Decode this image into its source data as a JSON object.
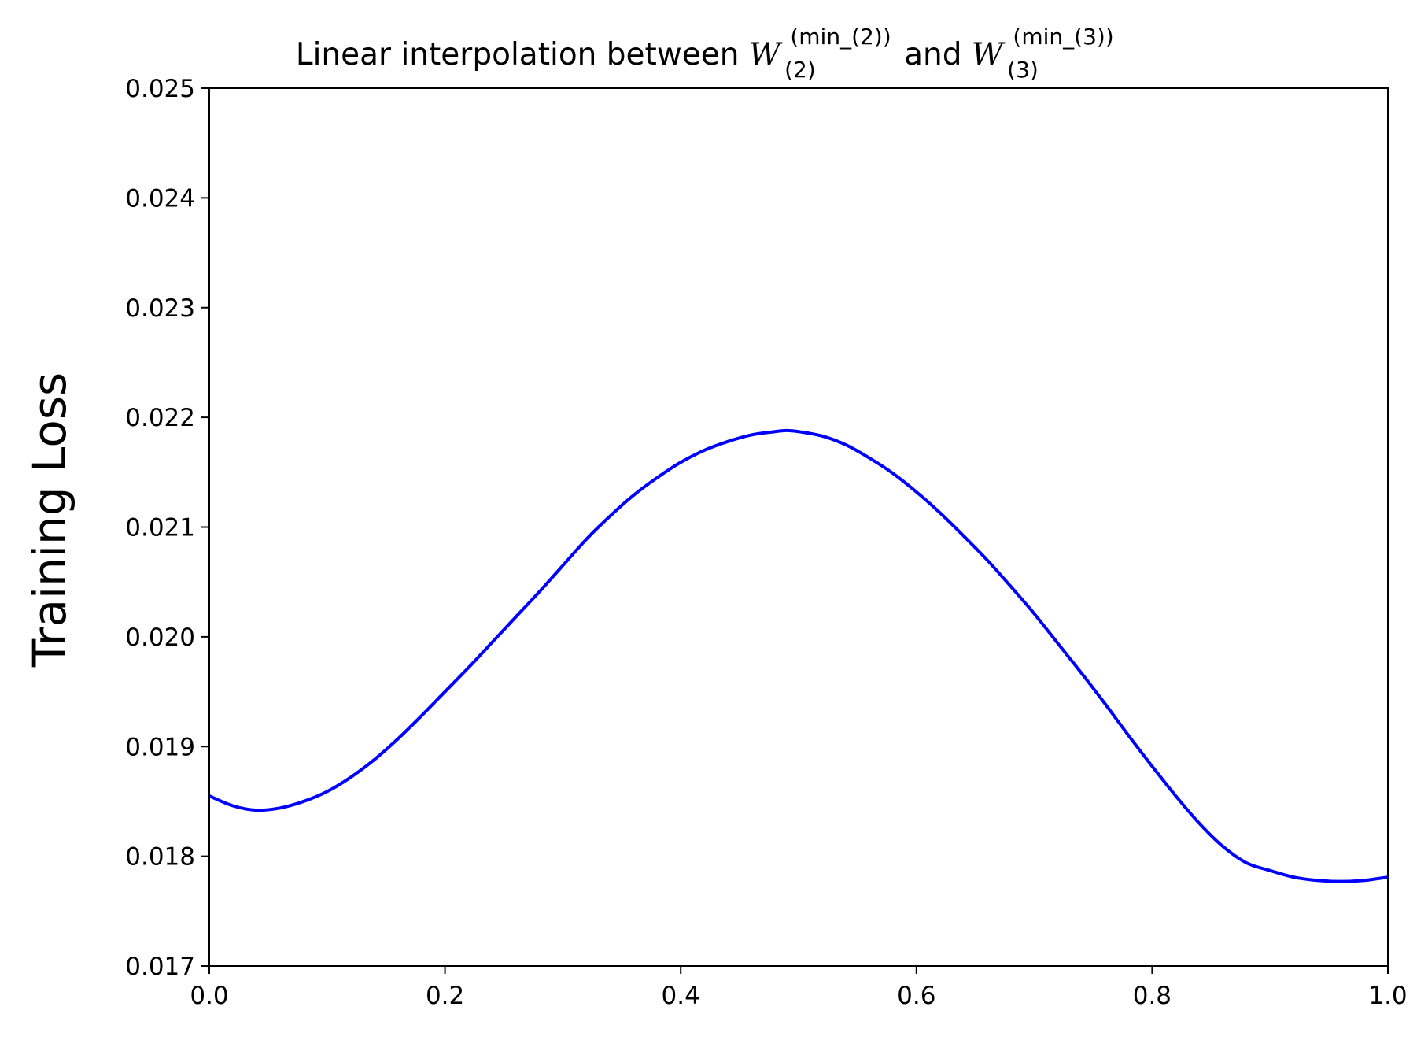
{
  "chart_data": {
    "type": "line",
    "title": {
      "prefix": "Linear interpolation between ",
      "w1_symbol": "W",
      "w1_sup": "(min_(2))",
      "w1_sub": "(2)",
      "connector": " and ",
      "w2_symbol": "W",
      "w2_sup": "(min_(3))",
      "w2_sub": "(3)"
    },
    "xlabel": "",
    "ylabel": "Training Loss",
    "xlim": [
      0.0,
      1.0
    ],
    "ylim": [
      0.017,
      0.025
    ],
    "xticks": [
      "0.0",
      "0.2",
      "0.4",
      "0.6",
      "0.8",
      "1.0"
    ],
    "yticks": [
      "0.017",
      "0.018",
      "0.019",
      "0.020",
      "0.021",
      "0.022",
      "0.023",
      "0.024",
      "0.025"
    ],
    "grid": false,
    "series": [
      {
        "color": "#0000ff",
        "x": [
          0.0,
          0.02,
          0.04,
          0.06,
          0.08,
          0.1,
          0.12,
          0.14,
          0.16,
          0.18,
          0.2,
          0.22,
          0.24,
          0.26,
          0.28,
          0.3,
          0.32,
          0.34,
          0.36,
          0.38,
          0.4,
          0.42,
          0.44,
          0.46,
          0.48,
          0.49,
          0.5,
          0.52,
          0.54,
          0.56,
          0.58,
          0.6,
          0.62,
          0.64,
          0.66,
          0.68,
          0.7,
          0.72,
          0.74,
          0.76,
          0.78,
          0.8,
          0.82,
          0.84,
          0.86,
          0.88,
          0.9,
          0.92,
          0.94,
          0.96,
          0.98,
          1.0
        ],
        "y": [
          0.01855,
          0.01846,
          0.01842,
          0.01844,
          0.0185,
          0.01859,
          0.01872,
          0.01888,
          0.01907,
          0.01928,
          0.0195,
          0.01972,
          0.01995,
          0.02018,
          0.02041,
          0.02065,
          0.02089,
          0.0211,
          0.02129,
          0.02145,
          0.02159,
          0.0217,
          0.02178,
          0.02184,
          0.02187,
          0.02188,
          0.02187,
          0.02183,
          0.02175,
          0.02163,
          0.02149,
          0.02132,
          0.02113,
          0.02092,
          0.0207,
          0.02046,
          0.02021,
          0.01994,
          0.01967,
          0.01939,
          0.0191,
          0.01882,
          0.01855,
          0.0183,
          0.01809,
          0.01794,
          0.01787,
          0.01781,
          0.01778,
          0.01777,
          0.01778,
          0.01781
        ]
      }
    ]
  }
}
